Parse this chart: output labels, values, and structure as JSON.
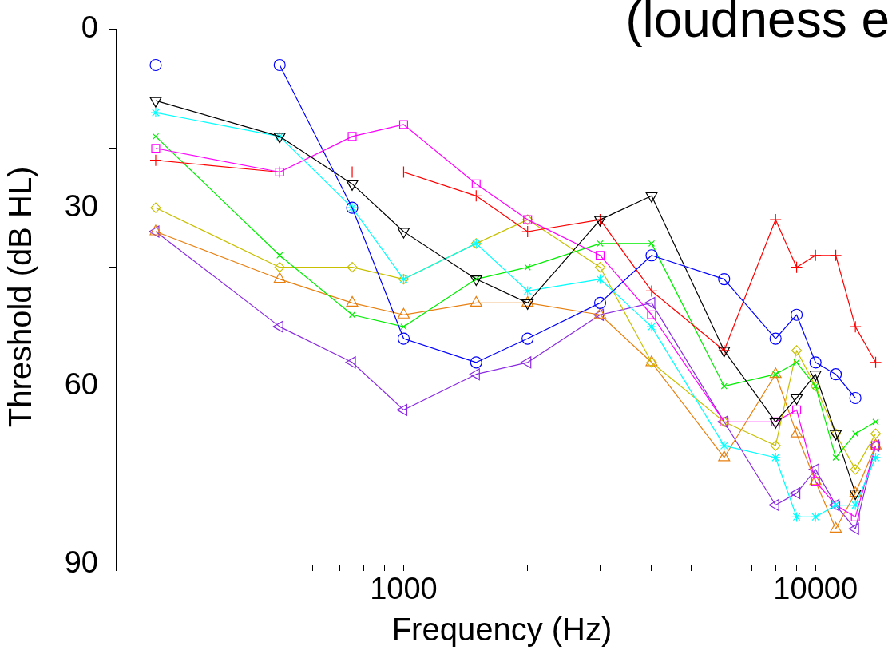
{
  "chart_data": {
    "type": "line",
    "title": "(loudness e",
    "xlabel": "Frequency (Hz)",
    "ylabel": "Threshold (dB HL)",
    "log": "x",
    "grid": false,
    "legend": false,
    "x": [
      250,
      500,
      750,
      1000,
      1500,
      2000,
      3000,
      4000,
      6000,
      8000,
      9000,
      10000,
      11200,
      12500,
      14000
    ],
    "xlim": [
      200,
      15000
    ],
    "xticks": [
      {
        "value": 200,
        "label": null
      },
      {
        "value": 300,
        "label": null
      },
      {
        "value": 400,
        "label": null
      },
      {
        "value": 500,
        "label": null
      },
      {
        "value": 600,
        "label": null
      },
      {
        "value": 700,
        "label": null
      },
      {
        "value": 800,
        "label": null
      },
      {
        "value": 900,
        "label": null
      },
      1000,
      {
        "value": 2000,
        "label": null
      },
      {
        "value": 3000,
        "label": null
      },
      {
        "value": 4000,
        "label": null
      },
      {
        "value": 5000,
        "label": null
      },
      {
        "value": 6000,
        "label": null
      },
      {
        "value": 7000,
        "label": null
      },
      {
        "value": 8000,
        "label": null
      },
      {
        "value": 9000,
        "label": null
      },
      10000
    ],
    "ylim": [
      90,
      0
    ],
    "yticks": [
      0,
      {
        "value": 10,
        "label": null
      },
      {
        "value": 20,
        "label": null
      },
      30,
      {
        "value": 40,
        "label": null
      },
      {
        "value": 50,
        "label": null
      },
      60,
      {
        "value": 70,
        "label": null
      },
      {
        "value": 80,
        "label": null
      },
      90
    ],
    "series": [
      {
        "color": "#0000ff",
        "marker": "circle",
        "values": [
          6,
          6,
          30,
          52,
          56,
          52,
          46,
          38,
          42,
          52,
          48,
          56,
          58,
          62,
          null
        ]
      },
      {
        "color": "#000000",
        "marker": "triangle-down",
        "values": [
          12,
          18,
          26,
          34,
          42,
          46,
          32,
          28,
          54,
          66,
          62,
          58,
          68,
          78,
          null
        ]
      },
      {
        "color": "#00ffff",
        "marker": "cross",
        "values": [
          14,
          18,
          30,
          42,
          36,
          44,
          42,
          50,
          70,
          72,
          82,
          82,
          80,
          80,
          72
        ]
      },
      {
        "color": "#ff00ff",
        "marker": "square",
        "values": [
          20,
          24,
          18,
          16,
          26,
          32,
          38,
          48,
          66,
          66,
          64,
          76,
          80,
          82,
          70
        ]
      },
      {
        "color": "#ff0000",
        "marker": "plus",
        "values": [
          22,
          24,
          24,
          24,
          28,
          34,
          32,
          44,
          54,
          32,
          40,
          38,
          38,
          50,
          56
        ]
      },
      {
        "color": "#00ee00",
        "marker": "x",
        "values": [
          18,
          38,
          48,
          50,
          42,
          40,
          36,
          36,
          60,
          58,
          56,
          60,
          72,
          68,
          66
        ]
      },
      {
        "color": "#c8c000",
        "marker": "diamond",
        "values": [
          30,
          40,
          40,
          42,
          36,
          32,
          40,
          56,
          66,
          70,
          54,
          60,
          68,
          74,
          68
        ]
      },
      {
        "color": "#e88010",
        "marker": "triangle",
        "values": [
          34,
          42,
          46,
          48,
          46,
          46,
          48,
          56,
          72,
          58,
          68,
          76,
          84,
          78,
          70
        ]
      },
      {
        "color": "#8a2be2",
        "marker": "triangle-left",
        "values": [
          34,
          50,
          56,
          64,
          58,
          56,
          48,
          46,
          66,
          80,
          78,
          74,
          80,
          84,
          70
        ]
      }
    ]
  }
}
